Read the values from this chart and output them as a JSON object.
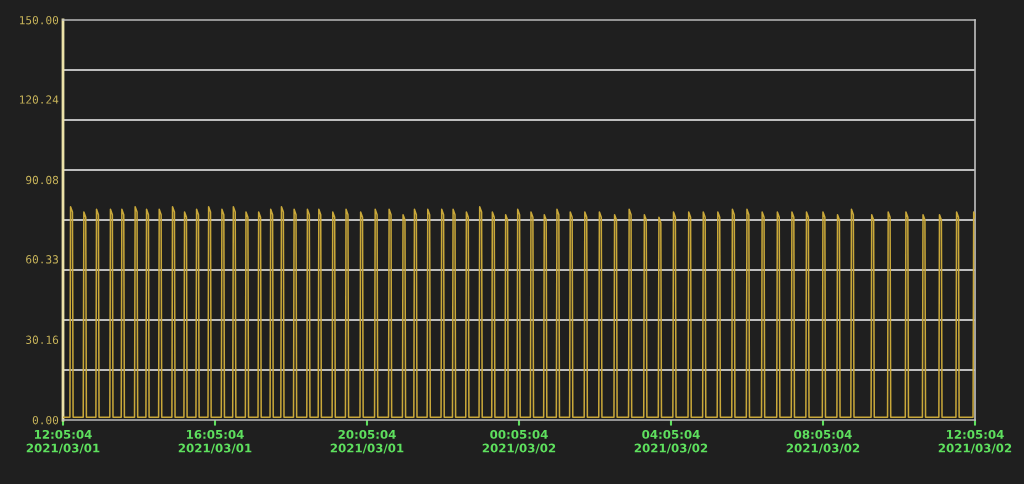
{
  "chart_data": {
    "type": "line",
    "line_style": "solid",
    "xlim": [
      "2021-03-01T12:05:04",
      "2021-03-02T12:05:04"
    ],
    "xticks": [
      {
        "value": "2021-03-01T12:05:04",
        "label": "12:05:04\n2021/03/01"
      },
      {
        "value": "2021-03-01T16:05:04",
        "label": "16:05:04\n2021/03/01"
      },
      {
        "value": "2021-03-01T20:05:04",
        "label": "20:05:04\n2021/03/01"
      },
      {
        "value": "2021-03-02T00:05:04",
        "label": "00:05:04\n2021/03/02"
      },
      {
        "value": "2021-03-02T04:05:04",
        "label": "04:05:04\n2021/03/02"
      },
      {
        "value": "2021-03-02T08:05:04",
        "label": "08:05:04\n2021/03/02"
      },
      {
        "value": "2021-03-02T12:05:04",
        "label": "12:05:04\n2021/03/02"
      }
    ],
    "ylim": [
      0,
      150
    ],
    "yticks": [
      {
        "value": 0,
        "label": "0.00"
      },
      30.16,
      60.33,
      90.08,
      120.24,
      {
        "value": 150,
        "label": "150.00"
      }
    ],
    "ref_lines": [
      {
        "axis": "y",
        "value": 18.75,
        "color": "#bdbdbd"
      },
      {
        "axis": "y",
        "value": 37.5,
        "color": "#bdbdbd"
      },
      {
        "axis": "y",
        "value": 56.25,
        "color": "#bdbdbd"
      },
      {
        "axis": "y",
        "value": 75,
        "color": "#bdbdbd"
      },
      {
        "axis": "y",
        "value": 93.75,
        "color": "#bdbdbd"
      },
      {
        "axis": "y",
        "value": 112.5,
        "color": "#bdbdbd"
      },
      {
        "axis": "y",
        "value": 131.25,
        "color": "#bdbdbd"
      }
    ],
    "series": [
      {
        "color": "#c9a83a",
        "x": [
          "2021-03-01T12:06",
          "2021-03-01T12:16",
          "2021-03-01T12:17",
          "2021-03-01T12:20",
          "2021-03-01T12:21",
          "2021-03-01T12:37",
          "2021-03-01T12:38",
          "2021-03-01T12:41",
          "2021-03-01T12:42",
          "2021-03-01T12:57",
          "2021-03-01T12:58",
          "2021-03-01T13:01",
          "2021-03-01T13:02",
          "2021-03-01T13:19",
          "2021-03-01T13:20",
          "2021-03-01T13:23",
          "2021-03-01T13:24",
          "2021-03-01T13:37",
          "2021-03-01T13:38",
          "2021-03-01T13:41",
          "2021-03-01T13:42",
          "2021-03-01T13:58",
          "2021-03-01T13:59",
          "2021-03-01T14:02",
          "2021-03-01T14:03",
          "2021-03-01T14:16",
          "2021-03-01T14:17",
          "2021-03-01T14:20",
          "2021-03-01T14:21",
          "2021-03-01T14:36",
          "2021-03-01T14:37",
          "2021-03-01T14:40",
          "2021-03-01T14:41",
          "2021-03-01T14:57",
          "2021-03-01T14:58",
          "2021-03-01T15:01",
          "2021-03-01T15:02",
          "2021-03-01T15:16",
          "2021-03-01T15:17",
          "2021-03-01T15:20",
          "2021-03-01T15:21",
          "2021-03-01T15:35",
          "2021-03-01T15:36",
          "2021-03-01T15:39",
          "2021-03-01T15:40",
          "2021-03-01T15:54",
          "2021-03-01T15:55",
          "2021-03-01T15:58",
          "2021-03-01T15:59",
          "2021-03-01T16:15",
          "2021-03-01T16:16",
          "2021-03-01T16:19",
          "2021-03-01T16:20",
          "2021-03-01T16:33",
          "2021-03-01T16:34",
          "2021-03-01T16:37",
          "2021-03-01T16:38",
          "2021-03-01T16:53",
          "2021-03-01T16:54",
          "2021-03-01T16:57",
          "2021-03-01T16:58",
          "2021-03-01T17:13",
          "2021-03-01T17:14",
          "2021-03-01T17:17",
          "2021-03-01T17:18",
          "2021-03-01T17:32",
          "2021-03-01T17:33",
          "2021-03-01T17:36",
          "2021-03-01T17:37",
          "2021-03-01T17:49",
          "2021-03-01T17:50",
          "2021-03-01T17:53",
          "2021-03-01T17:54",
          "2021-03-01T18:09",
          "2021-03-01T18:10",
          "2021-03-01T18:13",
          "2021-03-01T18:14",
          "2021-03-01T18:30",
          "2021-03-01T18:31",
          "2021-03-01T18:34",
          "2021-03-01T18:35",
          "2021-03-01T18:48",
          "2021-03-01T18:49",
          "2021-03-01T18:52",
          "2021-03-01T18:53",
          "2021-03-01T19:10",
          "2021-03-01T19:11",
          "2021-03-01T19:14",
          "2021-03-01T19:15",
          "2021-03-01T19:31",
          "2021-03-01T19:32",
          "2021-03-01T19:35",
          "2021-03-01T19:36",
          "2021-03-01T19:54",
          "2021-03-01T19:55",
          "2021-03-01T19:58",
          "2021-03-01T19:59",
          "2021-03-01T20:17",
          "2021-03-01T20:18",
          "2021-03-01T20:21",
          "2021-03-01T20:22",
          "2021-03-01T20:39",
          "2021-03-01T20:40",
          "2021-03-01T20:43",
          "2021-03-01T20:44",
          "2021-03-01T21:01",
          "2021-03-01T21:02",
          "2021-03-01T21:05",
          "2021-03-01T21:06",
          "2021-03-01T21:19",
          "2021-03-01T21:20",
          "2021-03-01T21:23",
          "2021-03-01T21:24",
          "2021-03-01T21:40",
          "2021-03-01T21:41",
          "2021-03-01T21:44",
          "2021-03-01T21:45",
          "2021-03-01T22:02",
          "2021-03-01T22:03",
          "2021-03-01T22:06",
          "2021-03-01T22:07",
          "2021-03-01T22:20",
          "2021-03-01T22:21",
          "2021-03-01T22:24",
          "2021-03-01T22:25",
          "2021-03-01T22:41",
          "2021-03-01T22:42",
          "2021-03-01T22:45",
          "2021-03-01T22:46",
          "2021-03-01T23:02",
          "2021-03-01T23:03",
          "2021-03-01T23:06",
          "2021-03-01T23:07",
          "2021-03-01T23:22",
          "2021-03-01T23:23",
          "2021-03-01T23:26",
          "2021-03-01T23:27",
          "2021-03-01T23:43",
          "2021-03-01T23:44",
          "2021-03-01T23:47",
          "2021-03-01T23:48",
          "2021-03-02T00:02",
          "2021-03-02T00:03",
          "2021-03-02T00:06",
          "2021-03-02T00:07",
          "2021-03-02T00:23",
          "2021-03-02T00:24",
          "2021-03-02T00:27",
          "2021-03-02T00:28",
          "2021-03-02T00:44",
          "2021-03-02T00:45",
          "2021-03-02T00:48",
          "2021-03-02T00:49",
          "2021-03-02T01:04",
          "2021-03-02T01:05",
          "2021-03-02T01:08",
          "2021-03-02T01:09",
          "2021-03-02T01:25",
          "2021-03-02T01:26",
          "2021-03-02T01:29",
          "2021-03-02T01:30",
          "2021-03-02T01:48",
          "2021-03-02T01:49",
          "2021-03-02T01:52",
          "2021-03-02T01:53",
          "2021-03-02T02:11",
          "2021-03-02T02:12",
          "2021-03-02T02:15",
          "2021-03-02T02:16",
          "2021-03-02T02:35",
          "2021-03-02T02:36",
          "2021-03-02T02:39",
          "2021-03-02T02:40",
          "2021-03-02T02:58",
          "2021-03-02T02:59",
          "2021-03-02T03:02",
          "2021-03-02T03:03",
          "2021-03-02T03:22",
          "2021-03-02T03:23",
          "2021-03-02T03:26",
          "2021-03-02T03:27",
          "2021-03-02T03:45",
          "2021-03-02T03:46",
          "2021-03-02T03:49",
          "2021-03-02T03:50",
          "2021-03-02T04:08",
          "2021-03-02T04:09",
          "2021-03-02T04:12",
          "2021-03-02T04:13",
          "2021-03-02T04:32",
          "2021-03-02T04:33",
          "2021-03-02T04:36",
          "2021-03-02T04:37",
          "2021-03-02T04:55",
          "2021-03-02T04:56",
          "2021-03-02T04:59",
          "2021-03-02T05:00",
          "2021-03-02T05:18",
          "2021-03-02T05:19",
          "2021-03-02T05:22",
          "2021-03-02T05:23",
          "2021-03-02T05:41",
          "2021-03-02T05:42",
          "2021-03-02T05:45",
          "2021-03-02T05:46",
          "2021-03-02T06:04",
          "2021-03-02T06:05",
          "2021-03-02T06:08",
          "2021-03-02T06:09",
          "2021-03-02T06:28",
          "2021-03-02T06:29",
          "2021-03-02T06:32",
          "2021-03-02T06:33",
          "2021-03-02T06:52",
          "2021-03-02T06:53",
          "2021-03-02T06:56",
          "2021-03-02T06:57",
          "2021-03-02T07:15",
          "2021-03-02T07:16",
          "2021-03-02T07:19",
          "2021-03-02T07:20",
          "2021-03-02T07:38",
          "2021-03-02T07:39",
          "2021-03-02T07:42",
          "2021-03-02T07:43",
          "2021-03-02T08:04",
          "2021-03-02T08:05",
          "2021-03-02T08:08",
          "2021-03-02T08:09",
          "2021-03-02T08:27",
          "2021-03-02T08:28",
          "2021-03-02T08:31",
          "2021-03-02T08:32",
          "2021-03-02T08:49",
          "2021-03-02T08:50",
          "2021-03-02T08:53",
          "2021-03-02T08:54",
          "2021-03-02T09:21",
          "2021-03-02T09:22",
          "2021-03-02T09:25",
          "2021-03-02T09:26",
          "2021-03-02T09:47",
          "2021-03-02T09:48",
          "2021-03-02T09:51",
          "2021-03-02T09:52",
          "2021-03-02T10:15",
          "2021-03-02T10:16",
          "2021-03-02T10:19",
          "2021-03-02T10:20",
          "2021-03-02T10:42",
          "2021-03-02T10:43",
          "2021-03-02T10:46",
          "2021-03-02T10:47",
          "2021-03-02T11:08",
          "2021-03-02T11:09",
          "2021-03-02T11:12",
          "2021-03-02T11:13",
          "2021-03-02T11:35",
          "2021-03-02T11:36",
          "2021-03-02T11:39",
          "2021-03-02T11:40",
          "2021-03-02T12:02",
          "2021-03-02T12:03",
          "2021-03-02T12:05"
        ],
        "values": [
          1,
          1,
          80,
          78,
          1,
          1,
          78,
          76,
          1,
          1,
          79,
          77,
          1,
          1,
          79,
          77,
          1,
          1,
          79,
          77,
          1,
          1,
          80,
          78,
          1,
          1,
          79,
          77,
          1,
          1,
          79,
          77,
          1,
          1,
          80,
          78,
          1,
          1,
          78,
          76,
          1,
          1,
          79,
          77,
          1,
          1,
          80,
          78,
          1,
          1,
          79,
          77,
          1,
          1,
          80,
          78,
          1,
          1,
          78,
          76,
          1,
          1,
          78,
          76,
          1,
          1,
          79,
          77,
          1,
          1,
          80,
          78,
          1,
          1,
          79,
          77,
          1,
          1,
          79,
          77,
          1,
          1,
          79,
          77,
          1,
          1,
          78,
          76,
          1,
          1,
          79,
          77,
          1,
          1,
          78,
          76,
          1,
          1,
          79,
          77,
          1,
          1,
          79,
          77,
          1,
          1,
          77,
          75,
          1,
          1,
          79,
          77,
          1,
          1,
          79,
          77,
          1,
          1,
          79,
          77,
          1,
          1,
          79,
          77,
          1,
          1,
          78,
          76,
          1,
          1,
          80,
          78,
          1,
          1,
          78,
          76,
          1,
          1,
          77,
          75,
          1,
          1,
          79,
          77,
          1,
          1,
          78,
          76,
          1,
          1,
          77,
          75,
          1,
          1,
          79,
          77,
          1,
          1,
          78,
          76,
          1,
          1,
          78,
          76,
          1,
          1,
          78,
          76,
          1,
          1,
          77,
          75,
          1,
          1,
          79,
          77,
          1,
          1,
          77,
          75,
          1,
          1,
          76,
          74,
          1,
          1,
          78,
          76,
          1,
          1,
          78,
          76,
          1,
          1,
          78,
          76,
          1,
          1,
          78,
          76,
          1,
          1,
          79,
          77,
          1,
          1,
          79,
          77,
          1,
          1,
          78,
          76,
          1,
          1,
          78,
          76,
          1,
          1,
          78,
          76,
          1,
          1,
          78,
          76,
          1,
          1,
          78,
          76,
          1,
          1,
          77,
          75,
          1,
          1,
          79,
          77,
          1,
          1,
          77,
          75,
          1,
          1,
          78,
          76,
          1,
          1,
          78,
          76,
          1,
          1,
          77,
          75,
          1,
          1,
          77,
          75,
          1,
          1,
          78,
          76,
          1,
          1,
          78,
          76
        ]
      }
    ]
  }
}
